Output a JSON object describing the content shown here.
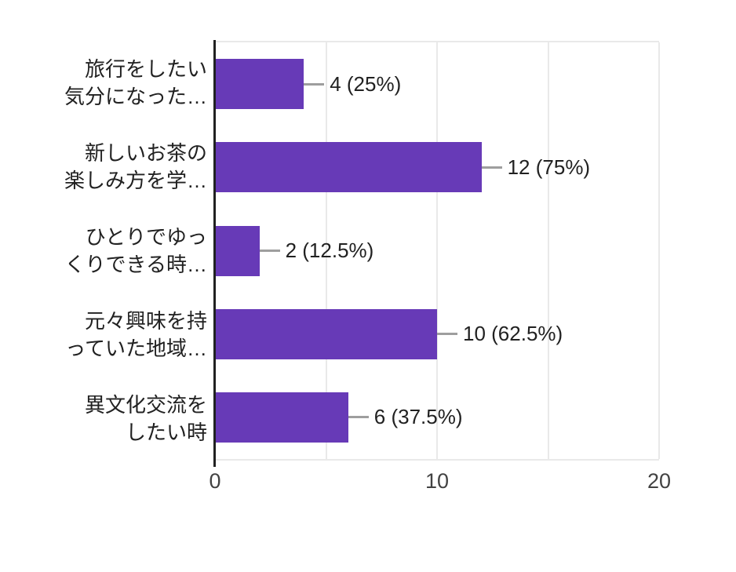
{
  "chart_data": {
    "type": "bar",
    "orientation": "horizontal",
    "title": "",
    "xlabel": "",
    "ylabel": "",
    "categories": [
      "旅行をしたい\n気分になった…",
      "新しいお茶の\n楽しみ方を学…",
      "ひとりでゆっ\nくりできる時…",
      "元々興味を持\nっていた地域…",
      "異文化交流を\nしたい時"
    ],
    "values": [
      4,
      12,
      2,
      10,
      6
    ],
    "value_labels": [
      "4 (25%)",
      "12 (75%)",
      "2 (12.5%)",
      "10 (62.5%)",
      "6 (37.5%)"
    ],
    "percentages": [
      25,
      75,
      12.5,
      62.5,
      37.5
    ],
    "xlim": [
      0,
      20
    ],
    "x_ticks": [
      "0",
      "10",
      "20"
    ],
    "x_tick_values": [
      0,
      10,
      20
    ],
    "gridline_values": [
      5,
      10,
      15,
      20
    ],
    "grid": true,
    "legend": false,
    "colors": {
      "bar": "#673ab7",
      "axis_line": "#212121",
      "gridline": "#e9e9e9",
      "leader_line": "#9e9e9e",
      "category_label": "#212121",
      "value_label": "#212121",
      "tick_label": "#424242",
      "background": "#ffffff"
    }
  }
}
